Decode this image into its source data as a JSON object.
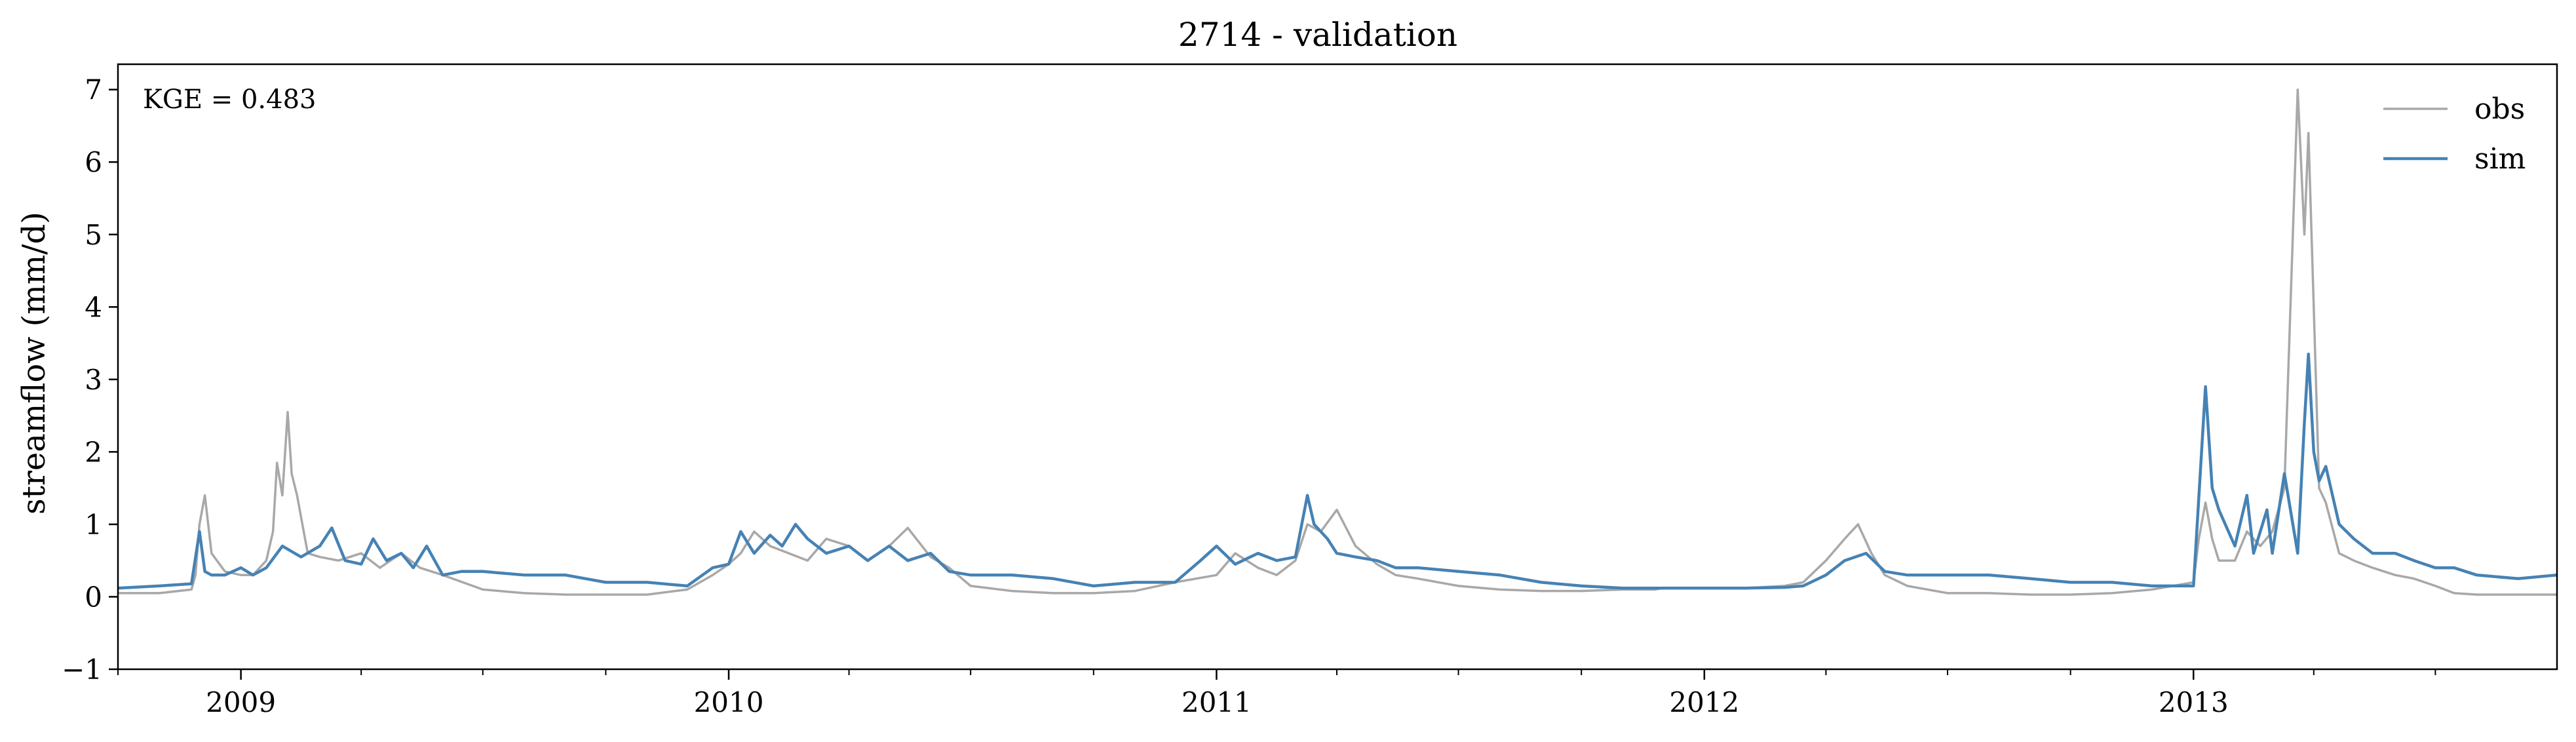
{
  "chart_data": {
    "type": "line",
    "title": "2714 - validation",
    "xlabel": "",
    "ylabel": "streamflow (mm/d)",
    "xlim": [
      "2008-10-01",
      "2013-09-30"
    ],
    "ylim": [
      -1,
      7.35
    ],
    "yticks": [
      -1,
      0,
      1,
      2,
      3,
      4,
      5,
      6,
      7
    ],
    "ytick_labels": [
      "−1",
      "0",
      "1",
      "2",
      "3",
      "4",
      "5",
      "6",
      "7"
    ],
    "xticks": [
      "2009-01-01",
      "2010-01-01",
      "2011-01-01",
      "2012-01-01",
      "2013-01-01"
    ],
    "xtick_labels": [
      "2009",
      "2010",
      "2011",
      "2012",
      "2013"
    ],
    "grid": false,
    "legend_position": "top-right",
    "annotation": "KGE = 0.483",
    "series": [
      {
        "name": "obs",
        "color": "#a8a8a8",
        "x": [
          "2008-10-01",
          "2008-11-01",
          "2008-11-25",
          "2008-11-28",
          "2008-12-01",
          "2008-12-05",
          "2008-12-10",
          "2008-12-20",
          "2009-01-01",
          "2009-01-10",
          "2009-01-20",
          "2009-01-25",
          "2009-01-28",
          "2009-02-01",
          "2009-02-05",
          "2009-02-08",
          "2009-02-12",
          "2009-02-20",
          "2009-03-01",
          "2009-03-15",
          "2009-04-01",
          "2009-04-15",
          "2009-05-01",
          "2009-05-15",
          "2009-06-01",
          "2009-07-01",
          "2009-08-01",
          "2009-09-01",
          "2009-10-01",
          "2009-11-01",
          "2009-12-01",
          "2009-12-20",
          "2010-01-01",
          "2010-01-10",
          "2010-01-20",
          "2010-02-01",
          "2010-02-15",
          "2010-03-01",
          "2010-03-15",
          "2010-04-01",
          "2010-04-15",
          "2010-05-01",
          "2010-05-15",
          "2010-06-01",
          "2010-06-15",
          "2010-07-01",
          "2010-08-01",
          "2010-09-01",
          "2010-10-01",
          "2010-11-01",
          "2010-12-01",
          "2011-01-01",
          "2011-01-15",
          "2011-02-01",
          "2011-02-15",
          "2011-03-01",
          "2011-03-10",
          "2011-03-20",
          "2011-04-01",
          "2011-04-15",
          "2011-05-01",
          "2011-05-15",
          "2011-06-01",
          "2011-07-01",
          "2011-08-01",
          "2011-09-01",
          "2011-10-01",
          "2011-11-01",
          "2011-11-25",
          "2011-12-01",
          "2012-01-01",
          "2012-02-01",
          "2012-03-01",
          "2012-03-15",
          "2012-04-01",
          "2012-04-15",
          "2012-04-25",
          "2012-05-05",
          "2012-05-15",
          "2012-06-01",
          "2012-07-01",
          "2012-08-01",
          "2012-09-01",
          "2012-10-01",
          "2012-11-01",
          "2012-12-01",
          "2013-01-01",
          "2013-01-05",
          "2013-01-10",
          "2013-01-15",
          "2013-01-20",
          "2013-02-01",
          "2013-02-10",
          "2013-02-20",
          "2013-03-01",
          "2013-03-10",
          "2013-03-20",
          "2013-03-25",
          "2013-03-28",
          "2013-04-01",
          "2013-04-05",
          "2013-04-10",
          "2013-04-20",
          "2013-05-01",
          "2013-05-15",
          "2013-06-01",
          "2013-06-15",
          "2013-07-01",
          "2013-07-15",
          "2013-08-01",
          "2013-09-01",
          "2013-09-30"
        ],
        "y": [
          0.05,
          0.05,
          0.1,
          0.3,
          1.0,
          1.4,
          0.6,
          0.35,
          0.3,
          0.3,
          0.5,
          0.9,
          1.85,
          1.4,
          2.55,
          1.7,
          1.4,
          0.6,
          0.55,
          0.5,
          0.6,
          0.4,
          0.6,
          0.4,
          0.3,
          0.1,
          0.05,
          0.03,
          0.03,
          0.03,
          0.1,
          0.3,
          0.45,
          0.6,
          0.9,
          0.7,
          0.6,
          0.5,
          0.8,
          0.7,
          0.5,
          0.7,
          0.95,
          0.55,
          0.4,
          0.15,
          0.08,
          0.05,
          0.05,
          0.08,
          0.2,
          0.3,
          0.6,
          0.4,
          0.3,
          0.5,
          1.0,
          0.9,
          1.2,
          0.7,
          0.45,
          0.3,
          0.25,
          0.15,
          0.1,
          0.08,
          0.08,
          0.1,
          0.1,
          0.12,
          0.12,
          0.12,
          0.15,
          0.2,
          0.5,
          0.8,
          1.0,
          0.6,
          0.3,
          0.15,
          0.05,
          0.05,
          0.03,
          0.03,
          0.05,
          0.1,
          0.2,
          0.8,
          1.3,
          0.8,
          0.5,
          0.5,
          0.9,
          0.7,
          0.9,
          1.5,
          7.0,
          5.0,
          6.4,
          4.0,
          1.5,
          1.3,
          0.6,
          0.5,
          0.4,
          0.3,
          0.25,
          0.15,
          0.05,
          0.03,
          0.03,
          0.03
        ]
      },
      {
        "name": "sim",
        "color": "#4682b4",
        "x": [
          "2008-10-01",
          "2008-11-01",
          "2008-11-25",
          "2008-12-01",
          "2008-12-05",
          "2008-12-10",
          "2008-12-20",
          "2009-01-01",
          "2009-01-10",
          "2009-01-20",
          "2009-02-01",
          "2009-02-15",
          "2009-03-01",
          "2009-03-10",
          "2009-03-20",
          "2009-04-01",
          "2009-04-10",
          "2009-04-20",
          "2009-05-01",
          "2009-05-10",
          "2009-05-20",
          "2009-06-01",
          "2009-06-15",
          "2009-07-01",
          "2009-08-01",
          "2009-09-01",
          "2009-10-01",
          "2009-11-01",
          "2009-12-01",
          "2009-12-20",
          "2010-01-01",
          "2010-01-10",
          "2010-01-20",
          "2010-02-01",
          "2010-02-10",
          "2010-02-20",
          "2010-03-01",
          "2010-03-15",
          "2010-04-01",
          "2010-04-15",
          "2010-05-01",
          "2010-05-15",
          "2010-06-01",
          "2010-06-15",
          "2010-07-01",
          "2010-08-01",
          "2010-09-01",
          "2010-10-01",
          "2010-11-01",
          "2010-12-01",
          "2010-12-20",
          "2011-01-01",
          "2011-01-15",
          "2011-02-01",
          "2011-02-15",
          "2011-03-01",
          "2011-03-10",
          "2011-03-15",
          "2011-03-25",
          "2011-04-01",
          "2011-04-15",
          "2011-05-01",
          "2011-05-15",
          "2011-06-01",
          "2011-07-01",
          "2011-08-01",
          "2011-09-01",
          "2011-10-01",
          "2011-11-01",
          "2011-12-01",
          "2012-01-01",
          "2012-02-01",
          "2012-03-01",
          "2012-03-15",
          "2012-04-01",
          "2012-04-15",
          "2012-05-01",
          "2012-05-15",
          "2012-06-01",
          "2012-07-01",
          "2012-08-01",
          "2012-09-01",
          "2012-10-01",
          "2012-11-01",
          "2012-12-01",
          "2013-01-01",
          "2013-01-10",
          "2013-01-15",
          "2013-01-20",
          "2013-02-01",
          "2013-02-10",
          "2013-02-15",
          "2013-02-25",
          "2013-03-01",
          "2013-03-10",
          "2013-03-20",
          "2013-03-25",
          "2013-03-28",
          "2013-04-01",
          "2013-04-05",
          "2013-04-10",
          "2013-04-20",
          "2013-05-01",
          "2013-05-15",
          "2013-06-01",
          "2013-06-15",
          "2013-07-01",
          "2013-07-15",
          "2013-08-01",
          "2013-09-01",
          "2013-09-30"
        ],
        "y": [
          0.12,
          0.15,
          0.18,
          0.9,
          0.35,
          0.3,
          0.3,
          0.4,
          0.3,
          0.4,
          0.7,
          0.55,
          0.7,
          0.95,
          0.5,
          0.45,
          0.8,
          0.5,
          0.6,
          0.4,
          0.7,
          0.3,
          0.35,
          0.35,
          0.3,
          0.3,
          0.2,
          0.2,
          0.15,
          0.4,
          0.45,
          0.9,
          0.6,
          0.85,
          0.7,
          1.0,
          0.8,
          0.6,
          0.7,
          0.5,
          0.7,
          0.5,
          0.6,
          0.35,
          0.3,
          0.3,
          0.25,
          0.15,
          0.2,
          0.2,
          0.5,
          0.7,
          0.45,
          0.6,
          0.5,
          0.55,
          1.4,
          1.0,
          0.8,
          0.6,
          0.55,
          0.5,
          0.4,
          0.4,
          0.35,
          0.3,
          0.2,
          0.15,
          0.12,
          0.12,
          0.12,
          0.12,
          0.13,
          0.15,
          0.3,
          0.5,
          0.6,
          0.35,
          0.3,
          0.3,
          0.3,
          0.25,
          0.2,
          0.2,
          0.15,
          0.15,
          2.9,
          1.5,
          1.2,
          0.7,
          1.4,
          0.6,
          1.2,
          0.6,
          1.7,
          0.6,
          2.4,
          3.35,
          2.0,
          1.6,
          1.8,
          1.0,
          0.8,
          0.6,
          0.6,
          0.5,
          0.4,
          0.4,
          0.3,
          0.25,
          0.3
        ]
      }
    ]
  }
}
